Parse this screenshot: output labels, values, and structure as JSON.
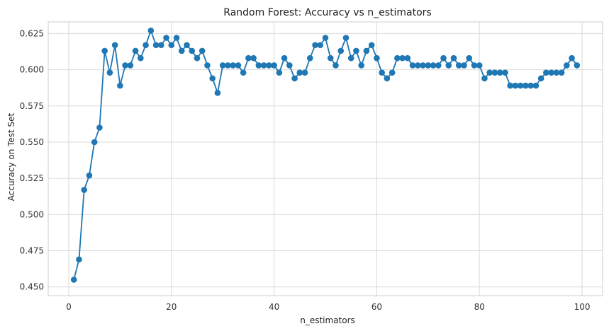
{
  "chart_data": {
    "type": "line",
    "title": "Random Forest: Accuracy vs n_estimators",
    "xlabel": "n_estimators",
    "ylabel": "Accuracy on Test Set",
    "xlim": [
      -4,
      104
    ],
    "ylim": [
      0.444,
      0.633
    ],
    "x_ticks": [
      0,
      20,
      40,
      60,
      80,
      100
    ],
    "y_ticks": [
      0.45,
      0.475,
      0.5,
      0.525,
      0.55,
      0.575,
      0.6,
      0.625
    ],
    "x_tick_labels": [
      "0",
      "20",
      "40",
      "60",
      "80",
      "100"
    ],
    "y_tick_labels": [
      "0.450",
      "0.475",
      "0.500",
      "0.525",
      "0.550",
      "0.575",
      "0.600",
      "0.625"
    ],
    "grid": true,
    "series": [
      {
        "color": "#1f77b4",
        "marker": "circle",
        "x": [
          1,
          2,
          3,
          4,
          5,
          6,
          7,
          8,
          9,
          10,
          11,
          12,
          13,
          14,
          15,
          16,
          17,
          18,
          19,
          20,
          21,
          22,
          23,
          24,
          25,
          26,
          27,
          28,
          29,
          30,
          31,
          32,
          33,
          34,
          35,
          36,
          37,
          38,
          39,
          40,
          41,
          42,
          43,
          44,
          45,
          46,
          47,
          48,
          49,
          50,
          51,
          52,
          53,
          54,
          55,
          56,
          57,
          58,
          59,
          60,
          61,
          62,
          63,
          64,
          65,
          66,
          67,
          68,
          69,
          70,
          71,
          72,
          73,
          74,
          75,
          76,
          77,
          78,
          79,
          80,
          81,
          82,
          83,
          84,
          85,
          86,
          87,
          88,
          89,
          90,
          91,
          92,
          93,
          94,
          95,
          96,
          97,
          98,
          99
        ],
        "values": [
          0.455,
          0.469,
          0.517,
          0.527,
          0.55,
          0.56,
          0.613,
          0.598,
          0.617,
          0.589,
          0.603,
          0.603,
          0.613,
          0.608,
          0.617,
          0.627,
          0.617,
          0.617,
          0.622,
          0.617,
          0.622,
          0.613,
          0.617,
          0.613,
          0.608,
          0.613,
          0.603,
          0.594,
          0.584,
          0.603,
          0.603,
          0.603,
          0.603,
          0.598,
          0.608,
          0.608,
          0.603,
          0.603,
          0.603,
          0.603,
          0.598,
          0.608,
          0.603,
          0.594,
          0.598,
          0.598,
          0.608,
          0.617,
          0.617,
          0.622,
          0.608,
          0.603,
          0.613,
          0.622,
          0.608,
          0.613,
          0.603,
          0.613,
          0.617,
          0.608,
          0.598,
          0.594,
          0.598,
          0.608,
          0.608,
          0.608,
          0.603,
          0.603,
          0.603,
          0.603,
          0.603,
          0.603,
          0.608,
          0.603,
          0.608,
          0.603,
          0.603,
          0.608,
          0.603,
          0.603,
          0.594,
          0.598,
          0.598,
          0.598,
          0.598,
          0.589,
          0.589,
          0.589,
          0.589,
          0.589,
          0.589,
          0.594,
          0.598,
          0.598,
          0.598,
          0.598,
          0.603,
          0.608,
          0.603
        ]
      }
    ]
  }
}
